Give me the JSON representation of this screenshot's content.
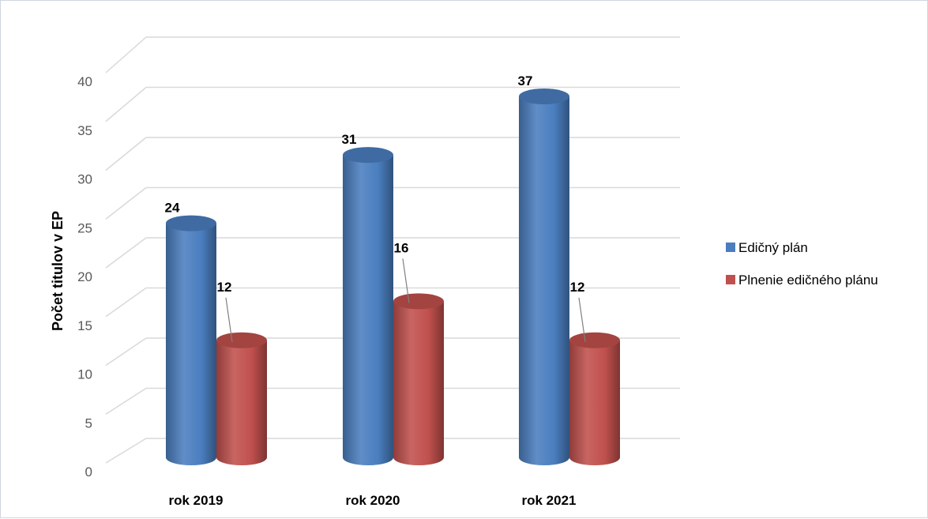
{
  "chart_data": {
    "type": "bar",
    "style": "3d-cylinder",
    "categories": [
      "rok 2019",
      "rok 2020",
      "rok 2021"
    ],
    "series": [
      {
        "name": "Edičný plán",
        "values": [
          24,
          31,
          37
        ],
        "color": "#4a7ebf"
      },
      {
        "name": "Plnenie edičného plánu",
        "values": [
          12,
          16,
          12
        ],
        "color": "#c0504d"
      }
    ],
    "title": "",
    "xlabel": "",
    "ylabel": "Počet titulov v EP",
    "ylim": [
      0,
      40
    ],
    "yticks": [
      "0",
      "5",
      "10",
      "15",
      "20",
      "25",
      "30",
      "35",
      "40"
    ],
    "grid": true,
    "legend_position": "right"
  }
}
